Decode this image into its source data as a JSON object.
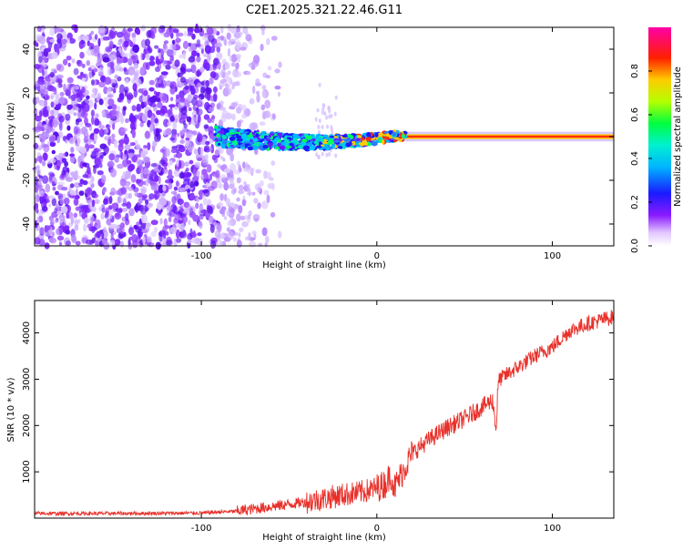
{
  "title": "C2E1.2025.321.22.46.G11",
  "chart_data": [
    {
      "type": "heatmap",
      "xlabel": "Height of straight line (km)",
      "ylabel": "Frequency (Hz)",
      "xlim": [
        -195,
        135
      ],
      "ylim": [
        -50,
        50
      ],
      "xticks": [
        -100,
        0,
        100
      ],
      "xtick_labels": [
        "-100",
        "0",
        "100"
      ],
      "yticks": [
        -40,
        -20,
        0,
        20,
        40
      ],
      "ytick_labels": [
        "-40",
        "-20",
        "0",
        "20",
        "40"
      ],
      "grid": false,
      "colorbar": {
        "label": "Normalized spectral amplitude",
        "range": [
          0,
          1
        ],
        "ticks": [
          0.0,
          0.2,
          0.4,
          0.6,
          0.8
        ],
        "tick_labels": [
          "0.0",
          "0.2",
          "0.4",
          "0.6",
          "0.8"
        ],
        "colormap": "rainbow (white-violet-blue-cyan-green-yellow-red-magenta)"
      },
      "description_values": {
        "noise_region_x": [
          -195,
          -85
        ],
        "signal_emerges_x": -92,
        "signal_freq_hz": 0
      }
    },
    {
      "type": "line",
      "xlabel": "Height of straight line (km)",
      "ylabel": "SNR (10 * v/v)",
      "xlim": [
        -195,
        135
      ],
      "ylim": [
        0,
        4700
      ],
      "xticks": [
        -100,
        0,
        100
      ],
      "xtick_labels": [
        "-100",
        "0",
        "100"
      ],
      "yticks": [
        1000,
        2000,
        3000,
        4000
      ],
      "ytick_labels": [
        "1000",
        "2000",
        "3000",
        "4000"
      ],
      "grid": false,
      "series": [
        {
          "color": "#e8302a",
          "x": [
            -195,
            -150,
            -100,
            -80,
            -60,
            -40,
            -20,
            -10,
            0,
            5,
            8,
            10,
            20,
            30,
            40,
            50,
            60,
            66,
            68,
            69,
            70,
            80,
            90,
            100,
            110,
            120,
            130,
            135
          ],
          "y": [
            100,
            100,
            110,
            150,
            250,
            350,
            500,
            550,
            650,
            750,
            950,
            650,
            1400,
            1700,
            1950,
            2150,
            2400,
            2550,
            1900,
            2850,
            3000,
            3250,
            3500,
            3700,
            4050,
            4200,
            4300,
            4350
          ]
        }
      ]
    }
  ]
}
